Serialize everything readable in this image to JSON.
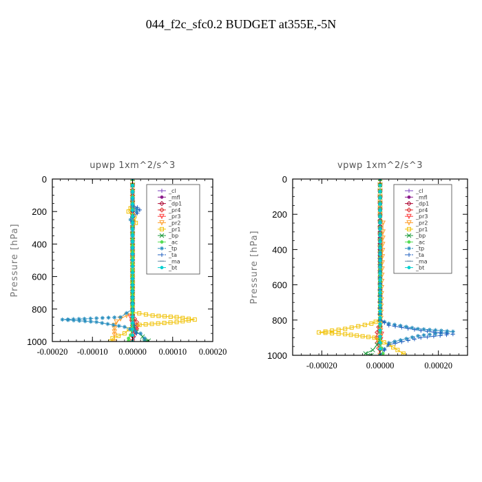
{
  "title": "044_f2c_sfc0.2  BUDGET at355E,-5N",
  "chart_data": [
    {
      "type": "line",
      "title": "upwp   1xm^2/s^3",
      "ylabel": "Pressure [hPa]",
      "xlabel": "",
      "xlim": [
        -0.0002,
        0.0002
      ],
      "ylim": [
        1000,
        0
      ],
      "xticks": [
        -0.0002,
        -0.0001,
        0.0,
        0.0001,
        0.0002
      ],
      "xtick_labels": [
        "-0.00020",
        "-0.00010",
        "0.00000",
        "0.00010",
        "0.00020"
      ],
      "yticks": [
        0,
        200,
        400,
        600,
        800,
        1000
      ],
      "ytick_labels": [
        "0",
        "200",
        "400",
        "600",
        "800",
        "1000"
      ],
      "legend_position": "top-right",
      "series": [
        {
          "name": "_cl",
          "color": "#7b3fbf",
          "marker": "plus",
          "x": [
            0,
            0,
            0,
            0,
            0,
            0,
            0,
            0,
            0,
            0,
            0
          ],
          "y": [
            0,
            100,
            200,
            300,
            400,
            500,
            600,
            700,
            800,
            900,
            1000
          ]
        },
        {
          "name": "_mfl",
          "color": "#8b1a8b",
          "marker": "dot",
          "x": [
            0,
            0,
            0,
            0,
            0,
            0,
            0,
            0,
            0,
            0,
            0
          ],
          "y": [
            0,
            100,
            200,
            300,
            400,
            500,
            600,
            700,
            800,
            900,
            1000
          ]
        },
        {
          "name": "_dp1",
          "color": "#b0103a",
          "marker": "diamond",
          "x": [
            0,
            0,
            0,
            0,
            0,
            0,
            0,
            0,
            0,
            0,
            0
          ],
          "y": [
            0,
            100,
            200,
            300,
            400,
            500,
            600,
            700,
            800,
            900,
            1000
          ]
        },
        {
          "name": "_pr4",
          "color": "#e03030",
          "marker": "diamond",
          "x": [
            0,
            0,
            0,
            5e-06,
            1e-05,
            1.2e-05,
            1e-05,
            5e-06,
            0
          ],
          "y": [
            0,
            800,
            840,
            860,
            880,
            900,
            920,
            940,
            1000
          ]
        },
        {
          "name": "_pr3",
          "color": "#ff3b3b",
          "marker": "triangle",
          "x": [
            0,
            0,
            -5e-06,
            -2e-06,
            3e-06,
            7e-06,
            3e-06,
            0
          ],
          "y": [
            0,
            800,
            850,
            880,
            910,
            930,
            960,
            1000
          ]
        },
        {
          "name": "_pr2",
          "color": "#ffa030",
          "marker": "triangle",
          "x": [
            0,
            0,
            -3e-05,
            -4e-05,
            -4.5e-05,
            -4.5e-05,
            -4.5e-05,
            -4.5e-05,
            -4.5e-05
          ],
          "y": [
            0,
            820,
            860,
            880,
            900,
            920,
            940,
            960,
            1000
          ]
        },
        {
          "name": "_pr1",
          "color": "#f0c000",
          "marker": "square",
          "x": [
            0,
            0,
            -5e-06,
            -1e-05,
            5e-06,
            8e-06,
            0,
            0,
            5e-05,
            0.00011,
            0.000155,
            0.00011,
            2e-06,
            -2e-05,
            -5e-05,
            -5.5e-05
          ],
          "y": [
            0,
            160,
            180,
            200,
            230,
            270,
            300,
            820,
            840,
            850,
            865,
            880,
            900,
            950,
            980,
            1000
          ]
        },
        {
          "name": "_bp",
          "color": "#1a9a3a",
          "marker": "x",
          "x": [
            0,
            0,
            1e-05,
            2.5e-05,
            3e-05,
            4e-05,
            3e-05
          ],
          "y": [
            0,
            900,
            940,
            970,
            990,
            995,
            1000
          ]
        },
        {
          "name": "_ac",
          "color": "#55dd55",
          "marker": "dot",
          "x": [
            0,
            0,
            -5e-06,
            -1e-05,
            -1e-05,
            0
          ],
          "y": [
            0,
            900,
            960,
            980,
            995,
            1000
          ]
        },
        {
          "name": "_tp",
          "color": "#2a8fbf",
          "marker": "asterisk",
          "x": [
            0,
            0,
            1e-05,
            1e-05,
            0,
            -5e-06,
            0,
            0,
            -3e-05,
            -0.00012,
            -0.000175,
            -9e-05,
            -2e-05,
            2e-05,
            3e-05,
            3e-05
          ],
          "y": [
            0,
            170,
            185,
            200,
            230,
            250,
            280,
            800,
            850,
            860,
            865,
            880,
            910,
            950,
            980,
            1000
          ]
        },
        {
          "name": "_ta",
          "color": "#1f5fbf",
          "marker": "plus",
          "x": [
            0,
            0,
            1.2e-05,
            1.8e-05,
            1.2e-05,
            3e-06,
            0,
            0,
            5e-06,
            1e-05,
            0
          ],
          "y": [
            0,
            160,
            175,
            190,
            210,
            230,
            260,
            850,
            900,
            950,
            1000
          ]
        },
        {
          "name": "_ma",
          "color": "#6a8fa8",
          "marker": "dash",
          "x": [
            0,
            0,
            0
          ],
          "y": [
            0,
            500,
            1000
          ]
        },
        {
          "name": "_bt",
          "color": "#00d0d0",
          "marker": "dot",
          "x": [
            0,
            0,
            0
          ],
          "y": [
            0,
            500,
            1000
          ]
        }
      ]
    },
    {
      "type": "line",
      "title": "vpwp   1xm^2/s^3",
      "ylabel": "Pressure [hPa]",
      "xlabel": "",
      "xlim": [
        -0.0003,
        0.0003
      ],
      "ylim": [
        1000,
        0
      ],
      "xticks": [
        -0.0002,
        0.0,
        0.0002
      ],
      "xtick_labels": [
        "-0.00020",
        "0.00000",
        "0.00020"
      ],
      "yticks": [
        0,
        200,
        400,
        600,
        800,
        1000
      ],
      "ytick_labels": [
        "0",
        "200",
        "400",
        "600",
        "800",
        "1000"
      ],
      "legend_position": "top-right",
      "series": [
        {
          "name": "_cl",
          "color": "#7b3fbf",
          "marker": "plus",
          "x": [
            0,
            0,
            0,
            0,
            0,
            0,
            0,
            0,
            0,
            0,
            0
          ],
          "y": [
            0,
            100,
            200,
            300,
            400,
            500,
            600,
            700,
            800,
            900,
            1000
          ]
        },
        {
          "name": "_mfl",
          "color": "#8b1a8b",
          "marker": "dot",
          "x": [
            0,
            0,
            0,
            0,
            0,
            0,
            0,
            0,
            0,
            0,
            0
          ],
          "y": [
            0,
            100,
            200,
            300,
            400,
            500,
            600,
            700,
            800,
            900,
            1000
          ]
        },
        {
          "name": "_dp1",
          "color": "#b0103a",
          "marker": "diamond",
          "x": [
            0,
            0,
            0,
            0,
            0,
            0,
            0,
            0,
            0,
            0,
            0
          ],
          "y": [
            0,
            100,
            200,
            300,
            400,
            500,
            600,
            700,
            800,
            900,
            1000
          ]
        },
        {
          "name": "_pr4",
          "color": "#e03030",
          "marker": "diamond",
          "x": [
            0,
            0,
            -5e-06,
            -1e-05,
            -1.2e-05,
            -1e-05,
            -5e-06,
            0
          ],
          "y": [
            0,
            800,
            840,
            870,
            900,
            930,
            960,
            1000
          ]
        },
        {
          "name": "_pr3",
          "color": "#ff3b3b",
          "marker": "triangle",
          "x": [
            0,
            0,
            5e-06,
            2e-06,
            -3e-06,
            0
          ],
          "y": [
            0,
            850,
            880,
            910,
            950,
            1000
          ]
        },
        {
          "name": "_pr2",
          "color": "#ffa030",
          "marker": "triangle",
          "x": [
            0,
            0,
            1e-05,
            1e-05,
            0
          ],
          "y": [
            0,
            200,
            250,
            300,
            1000
          ]
        },
        {
          "name": "_pr1",
          "color": "#f0c000",
          "marker": "square",
          "x": [
            0,
            0,
            -3e-05,
            -0.00012,
            -0.00021,
            -0.00012,
            -2e-05,
            3e-05,
            6e-05,
            8e-05,
            8e-05
          ],
          "y": [
            0,
            800,
            820,
            850,
            870,
            880,
            900,
            940,
            970,
            990,
            1000
          ]
        },
        {
          "name": "_bp",
          "color": "#1a9a3a",
          "marker": "x",
          "x": [
            0,
            0,
            -1e-05,
            -2.5e-05,
            -5e-05,
            -3e-05
          ],
          "y": [
            0,
            900,
            940,
            970,
            990,
            1000
          ]
        },
        {
          "name": "_ac",
          "color": "#55dd55",
          "marker": "dot",
          "x": [
            0,
            0,
            5e-06,
            1e-05,
            0
          ],
          "y": [
            0,
            900,
            960,
            990,
            1000
          ]
        },
        {
          "name": "_tp",
          "color": "#2a8fbf",
          "marker": "asterisk",
          "x": [
            0,
            0,
            3e-05,
            0.00013,
            0.00025,
            0.00013,
            3e-05,
            0
          ],
          "y": [
            0,
            800,
            820,
            850,
            865,
            890,
            930,
            1000
          ]
        },
        {
          "name": "_ta",
          "color": "#1f5fbf",
          "marker": "plus",
          "x": [
            0,
            0,
            3e-05,
            0.00014,
            0.00025,
            0.00014,
            3e-05,
            0
          ],
          "y": [
            0,
            800,
            830,
            860,
            880,
            900,
            940,
            1000
          ]
        },
        {
          "name": "_ma",
          "color": "#6a8fa8",
          "marker": "dash",
          "x": [
            0,
            0,
            0
          ],
          "y": [
            0,
            500,
            1000
          ]
        },
        {
          "name": "_bt",
          "color": "#00d0d0",
          "marker": "dot",
          "x": [
            0,
            0,
            0
          ],
          "y": [
            0,
            500,
            1000
          ]
        }
      ]
    }
  ]
}
